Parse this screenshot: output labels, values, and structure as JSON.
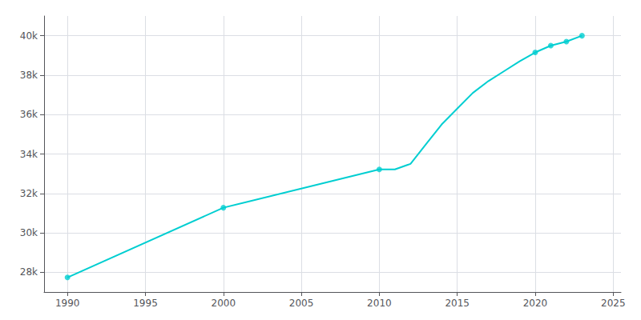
{
  "chart_data": {
    "type": "line",
    "x": [
      1990,
      2000,
      2010,
      2011,
      2012,
      2013,
      2014,
      2015,
      2016,
      2017,
      2018,
      2019,
      2020,
      2021,
      2022,
      2023
    ],
    "series": [
      {
        "type": "line",
        "color": "#00CED1",
        "values": [
          27738,
          31275,
          33217,
          33217,
          33500,
          34500,
          35500,
          36300,
          37100,
          37700,
          38200,
          38700,
          39152,
          39500,
          39700,
          40000
        ]
      },
      {
        "type": "scatter",
        "color": "#00CED1",
        "values": [
          27738,
          31275,
          33217,
          null,
          null,
          null,
          null,
          null,
          null,
          null,
          null,
          null,
          39152,
          39500,
          39700,
          40000
        ]
      }
    ],
    "xlim": [
      1988.5,
      2025.5
    ],
    "ylim": [
      27000,
      41000
    ],
    "xticks": [
      1990,
      1995,
      2000,
      2005,
      2010,
      2015,
      2020,
      2025
    ],
    "yticks": [
      {
        "value": 28000,
        "label": "28k"
      },
      {
        "value": 30000,
        "label": "30k"
      },
      {
        "value": 32000,
        "label": "32k"
      },
      {
        "value": 34000,
        "label": "34k"
      },
      {
        "value": 36000,
        "label": "36k"
      },
      {
        "value": 38000,
        "label": "38k"
      },
      {
        "value": 40000,
        "label": "40k"
      }
    ],
    "grid": true
  }
}
